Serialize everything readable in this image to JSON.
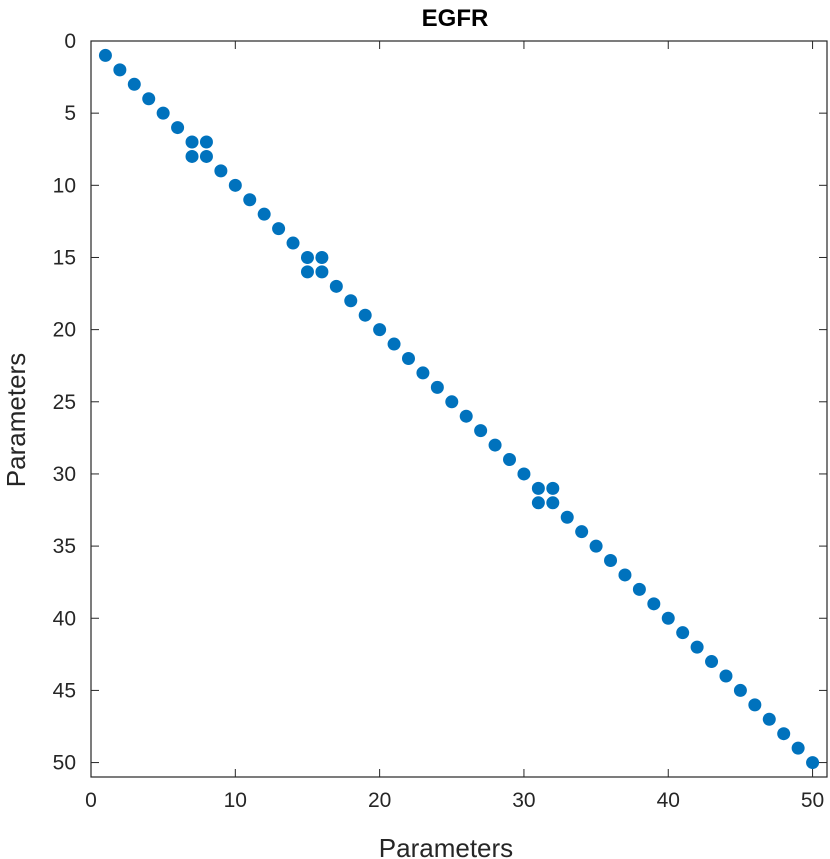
{
  "chart_data": {
    "type": "scatter",
    "title": "EGFR",
    "xlabel": "Parameters",
    "ylabel": "Parameters",
    "xlim": [
      0,
      51
    ],
    "ylim": [
      0,
      51
    ],
    "y_reversed": true,
    "grid": false,
    "xticks": [
      "0",
      "10",
      "20",
      "30",
      "40",
      "50"
    ],
    "yticks": [
      "0",
      "5",
      "10",
      "15",
      "20",
      "25",
      "30",
      "35",
      "40",
      "45",
      "50"
    ],
    "marker_color": "#0072BD",
    "series": [
      {
        "points": [
          [
            1,
            1
          ],
          [
            2,
            2
          ],
          [
            3,
            3
          ],
          [
            4,
            4
          ],
          [
            5,
            5
          ],
          [
            6,
            6
          ],
          [
            7,
            7
          ],
          [
            8,
            7
          ],
          [
            7,
            8
          ],
          [
            8,
            8
          ],
          [
            9,
            9
          ],
          [
            10,
            10
          ],
          [
            11,
            11
          ],
          [
            12,
            12
          ],
          [
            13,
            13
          ],
          [
            14,
            14
          ],
          [
            15,
            15
          ],
          [
            16,
            15
          ],
          [
            15,
            16
          ],
          [
            16,
            16
          ],
          [
            17,
            17
          ],
          [
            18,
            18
          ],
          [
            19,
            19
          ],
          [
            20,
            20
          ],
          [
            21,
            21
          ],
          [
            22,
            22
          ],
          [
            23,
            23
          ],
          [
            24,
            24
          ],
          [
            25,
            25
          ],
          [
            26,
            26
          ],
          [
            27,
            27
          ],
          [
            28,
            28
          ],
          [
            29,
            29
          ],
          [
            30,
            30
          ],
          [
            31,
            31
          ],
          [
            32,
            31
          ],
          [
            31,
            32
          ],
          [
            32,
            32
          ],
          [
            33,
            33
          ],
          [
            34,
            34
          ],
          [
            35,
            35
          ],
          [
            36,
            36
          ],
          [
            37,
            37
          ],
          [
            38,
            38
          ],
          [
            39,
            39
          ],
          [
            40,
            40
          ],
          [
            41,
            41
          ],
          [
            42,
            42
          ],
          [
            43,
            43
          ],
          [
            44,
            44
          ],
          [
            45,
            45
          ],
          [
            46,
            46
          ],
          [
            47,
            47
          ],
          [
            48,
            48
          ],
          [
            49,
            49
          ],
          [
            50,
            50
          ]
        ]
      }
    ]
  }
}
